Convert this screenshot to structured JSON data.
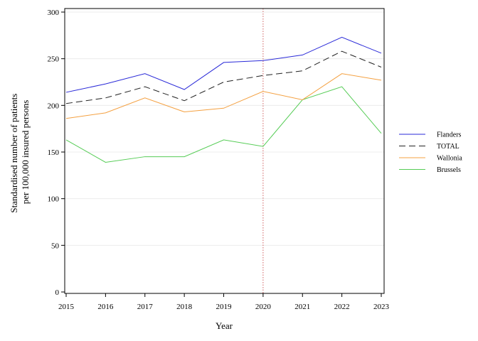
{
  "chart_data": {
    "type": "line",
    "xlabel": "Year",
    "ylabel": [
      "Standardised number of patients",
      "per 100,000 insured persons"
    ],
    "x": [
      2015,
      2016,
      2017,
      2018,
      2019,
      2020,
      2021,
      2022,
      2023
    ],
    "xlim": [
      2015,
      2023
    ],
    "ylim": [
      0,
      300
    ],
    "yticks": [
      0,
      50,
      100,
      150,
      200,
      250,
      300
    ],
    "grid": "horizontal",
    "reference_line": {
      "x": 2020,
      "color": "#d06060",
      "style": "dotted"
    },
    "legend_position": "right",
    "series": [
      {
        "name": "Flanders",
        "color": "#2a2ad8",
        "dash": "solid",
        "values": [
          214,
          223,
          234,
          217,
          246,
          248,
          254,
          273,
          256
        ]
      },
      {
        "name": "TOTAL",
        "color": "#222222",
        "dash": "dashed",
        "values": [
          202,
          208,
          220,
          205,
          225,
          232,
          237,
          258,
          241
        ]
      },
      {
        "name": "Wallonia",
        "color": "#f4a040",
        "dash": "solid",
        "values": [
          186,
          192,
          208,
          193,
          197,
          215,
          206,
          234,
          227
        ]
      },
      {
        "name": "Brussels",
        "color": "#55cc55",
        "dash": "solid",
        "values": [
          163,
          139,
          145,
          145,
          163,
          156,
          206,
          220,
          170
        ]
      }
    ]
  }
}
